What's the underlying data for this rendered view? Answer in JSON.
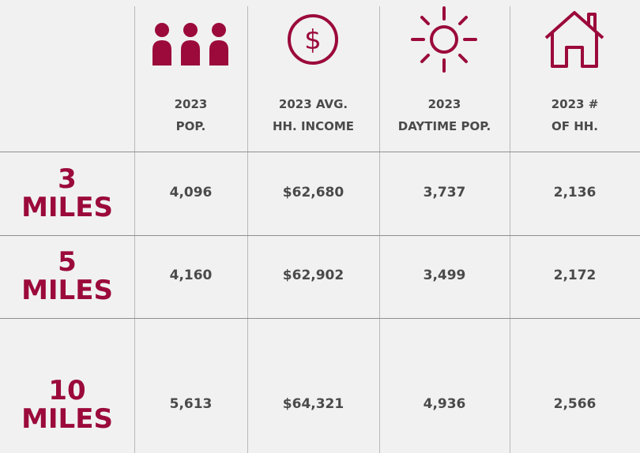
{
  "table": {
    "columns": [
      {
        "line1": "2023",
        "line2": "POP."
      },
      {
        "line1": "2023 AVG.",
        "line2": "HH. INCOME"
      },
      {
        "line1": "2023",
        "line2": "DAYTIME POP."
      },
      {
        "line1": "2023 #",
        "line2": "OF HH."
      }
    ],
    "rows": [
      {
        "line1": "3",
        "line2": "MILES",
        "values": [
          "4,096",
          "$62,680",
          "3,737",
          "2,136"
        ]
      },
      {
        "line1": "5",
        "line2": "MILES",
        "values": [
          "4,160",
          "$62,902",
          "3,499",
          "2,172"
        ]
      },
      {
        "line1": "10",
        "line2": "MILES",
        "values": [
          "5,613",
          "$64,321",
          "4,936",
          "2,566"
        ]
      }
    ]
  }
}
